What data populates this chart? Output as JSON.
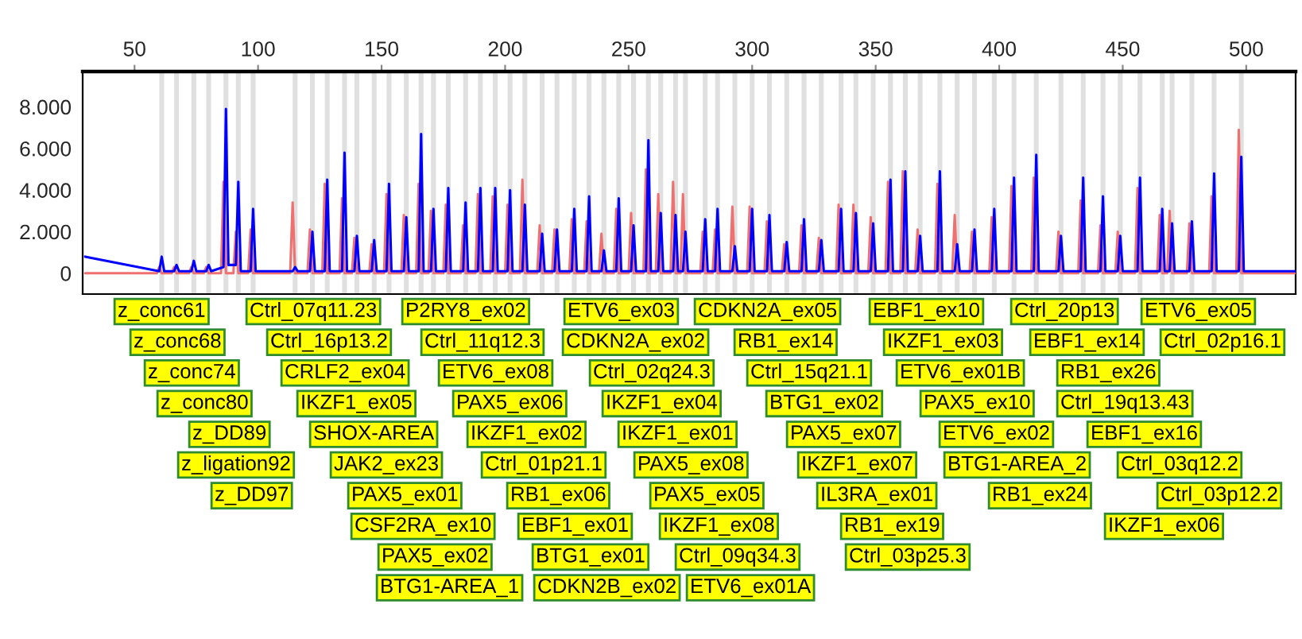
{
  "chart_data": {
    "type": "line",
    "xlim": [
      29,
      520
    ],
    "xticks": [
      50,
      100,
      150,
      200,
      250,
      300,
      350,
      400,
      450,
      500
    ],
    "ylim": [
      -1,
      9.7
    ],
    "yticks": [
      0,
      {
        "value": 2,
        "label": "2.000"
      },
      {
        "value": 4,
        "label": "4.000"
      },
      {
        "value": 6,
        "label": "6.000"
      },
      {
        "value": 8,
        "label": "8.000"
      }
    ],
    "grid": false,
    "legend": false,
    "series": [
      {
        "color": "#f07070",
        "x": [
          30,
          59,
          60,
          61,
          65,
          66,
          67,
          72,
          73,
          74,
          78,
          79,
          80,
          85,
          86,
          87,
          90,
          91,
          92,
          96,
          97,
          98,
          113,
          114,
          115,
          120,
          121,
          122,
          126,
          127,
          128,
          133,
          134,
          135,
          138,
          139,
          140,
          145,
          146,
          147,
          151,
          152,
          153,
          158,
          159,
          160,
          164,
          165,
          166,
          169,
          170,
          171,
          175,
          176,
          177,
          182,
          183,
          184,
          188,
          189,
          190,
          194,
          195,
          196,
          200,
          201,
          202,
          206,
          207,
          208,
          213,
          214,
          215,
          219,
          220,
          221,
          226,
          227,
          228,
          232,
          233,
          234,
          238,
          239,
          240,
          244,
          245,
          246,
          250,
          251,
          252,
          256,
          257,
          258,
          261,
          262,
          263,
          267,
          268,
          269,
          271,
          272,
          273,
          279,
          280,
          281,
          284,
          285,
          286,
          291,
          292,
          293,
          298,
          299,
          300,
          305,
          306,
          307,
          312,
          313,
          314,
          319,
          320,
          321,
          326,
          327,
          328,
          334,
          335,
          336,
          340,
          341,
          342,
          347,
          348,
          349,
          354,
          355,
          356,
          360,
          361,
          362,
          366,
          367,
          368,
          374,
          375,
          376,
          381,
          382,
          383,
          388,
          389,
          390,
          396,
          397,
          398,
          404,
          405,
          406,
          413,
          414,
          415,
          423,
          424,
          425,
          432,
          433,
          434,
          440,
          441,
          442,
          447,
          448,
          449,
          455,
          456,
          457,
          464,
          465,
          466,
          468,
          469,
          470,
          476,
          477,
          478,
          485,
          486,
          487,
          496,
          497,
          498,
          520
        ],
        "values": [
          0,
          0,
          0.3,
          0,
          0,
          0.3,
          0,
          0,
          0.3,
          0,
          0,
          0.3,
          0,
          0,
          4.4,
          0,
          0,
          2.0,
          0,
          0,
          2.1,
          0,
          0,
          3.4,
          0,
          0,
          2.1,
          0,
          0,
          4.3,
          0,
          0,
          3.6,
          0,
          0,
          1.7,
          0,
          0,
          1.4,
          0,
          0,
          3.8,
          0,
          0,
          2.8,
          0,
          0,
          4.3,
          0,
          0,
          3.0,
          0,
          0,
          3.3,
          0,
          0,
          2.3,
          0,
          0,
          3.8,
          0,
          0,
          3.7,
          0,
          0,
          3.3,
          0,
          0,
          4.5,
          0,
          0,
          2.3,
          0,
          0,
          2.1,
          0,
          0,
          2.6,
          0,
          0,
          2.5,
          0,
          0,
          1.9,
          0,
          0,
          3.1,
          0,
          0,
          2.9,
          0,
          0,
          5.0,
          0,
          0,
          3.8,
          0,
          0,
          4.4,
          0,
          0,
          3.8,
          0,
          0,
          2.0,
          0,
          0,
          2.1,
          0,
          0,
          3.2,
          0,
          0,
          3.2,
          0,
          0,
          2.5,
          0,
          0,
          1.4,
          0,
          0,
          2.3,
          0,
          0,
          1.7,
          0,
          0,
          3.3,
          0,
          0,
          3.3,
          0,
          0,
          2.7,
          0,
          0,
          4.4,
          0,
          0,
          4.9,
          0,
          0,
          2.1,
          0,
          0,
          4.3,
          0,
          0,
          2.8,
          0,
          0,
          2.0,
          0,
          0,
          2.7,
          0,
          0,
          4.2,
          0,
          0,
          4.6,
          0,
          0,
          2.0,
          0,
          0,
          3.5,
          0,
          0,
          2.3,
          0,
          0,
          2.0,
          0,
          0,
          4.1,
          0,
          0,
          2.8,
          0,
          0,
          3.0,
          0,
          0,
          2.4,
          0,
          0,
          3.7,
          0,
          0,
          6.9,
          0,
          0
        ]
      },
      {
        "color": "#0000ff",
        "x": [
          30,
          60,
          61,
          62,
          66,
          67,
          68,
          73,
          74,
          75,
          79,
          80,
          81,
          86,
          87,
          88,
          91,
          92,
          93,
          97,
          98,
          99,
          114,
          115,
          116,
          121,
          122,
          123,
          127,
          128,
          129,
          134,
          135,
          136,
          139,
          140,
          141,
          146,
          147,
          148,
          152,
          153,
          154,
          159,
          160,
          161,
          165,
          166,
          167,
          170,
          171,
          172,
          176,
          177,
          178,
          183,
          184,
          185,
          189,
          190,
          191,
          195,
          196,
          197,
          201,
          202,
          203,
          207,
          208,
          209,
          214,
          215,
          216,
          220,
          221,
          222,
          227,
          228,
          229,
          233,
          234,
          235,
          239,
          240,
          241,
          245,
          246,
          247,
          251,
          252,
          253,
          257,
          258,
          259,
          262,
          263,
          264,
          268,
          269,
          270,
          272,
          273,
          274,
          280,
          281,
          282,
          285,
          286,
          287,
          292,
          293,
          294,
          299,
          300,
          301,
          306,
          307,
          308,
          313,
          314,
          315,
          320,
          321,
          322,
          327,
          328,
          329,
          335,
          336,
          337,
          341,
          342,
          343,
          348,
          349,
          350,
          355,
          356,
          357,
          361,
          362,
          363,
          367,
          368,
          369,
          375,
          376,
          377,
          382,
          383,
          384,
          389,
          390,
          391,
          397,
          398,
          399,
          405,
          406,
          407,
          414,
          415,
          416,
          424,
          425,
          426,
          433,
          434,
          435,
          441,
          442,
          443,
          448,
          449,
          450,
          456,
          457,
          458,
          465,
          466,
          467,
          469,
          470,
          471,
          477,
          478,
          479,
          486,
          487,
          488,
          497,
          498,
          499,
          520
        ],
        "values": [
          0.8,
          0.1,
          0.8,
          0.1,
          0.1,
          0.4,
          0.1,
          0.1,
          0.6,
          0.1,
          0.1,
          0.4,
          0.1,
          0.3,
          7.9,
          0.4,
          0.4,
          4.4,
          0.1,
          0.1,
          3.1,
          0.1,
          0.1,
          0.3,
          0.1,
          0.1,
          2.0,
          0.1,
          0.1,
          4.5,
          0.1,
          0.1,
          5.8,
          0.1,
          0.1,
          1.8,
          0.1,
          0.1,
          1.6,
          0.1,
          0.1,
          4.3,
          0.1,
          0.1,
          2.7,
          0.1,
          0.1,
          6.7,
          0.1,
          0.1,
          3.1,
          0.1,
          0.1,
          4.1,
          0.1,
          0.1,
          3.4,
          0.1,
          0.1,
          4.1,
          0.1,
          0.1,
          4.1,
          0.1,
          0.1,
          4.0,
          0.1,
          0.1,
          3.3,
          0.1,
          0.1,
          1.9,
          0.1,
          0.1,
          2.1,
          0.1,
          0.1,
          3.1,
          0.1,
          0.1,
          3.7,
          0.1,
          0.1,
          1.1,
          0.1,
          0.1,
          3.6,
          0.1,
          0.1,
          2.3,
          0.1,
          0.1,
          6.4,
          0.1,
          0.1,
          2.9,
          0.1,
          0.1,
          2.8,
          0.1,
          0.1,
          2.0,
          0.1,
          0.1,
          2.6,
          0.1,
          0.1,
          3.1,
          0.1,
          0.1,
          1.3,
          0.1,
          0.1,
          3.1,
          0.1,
          0.1,
          2.8,
          0.1,
          0.1,
          1.5,
          0.1,
          0.1,
          2.6,
          0.1,
          0.1,
          1.6,
          0.1,
          0.1,
          3.1,
          0.1,
          0.1,
          2.9,
          0.1,
          0.1,
          2.4,
          0.1,
          0.1,
          4.5,
          0.1,
          0.1,
          4.9,
          0.1,
          0.1,
          1.8,
          0.1,
          0.1,
          4.9,
          0.1,
          0.1,
          1.4,
          0.1,
          0.1,
          2.1,
          0.1,
          0.1,
          3.1,
          0.1,
          0.1,
          4.6,
          0.1,
          0.1,
          5.7,
          0.1,
          0.1,
          1.8,
          0.1,
          0.1,
          4.6,
          0.1,
          0.1,
          3.7,
          0.1,
          0.1,
          1.8,
          0.1,
          0.1,
          4.6,
          0.1,
          0.1,
          3.1,
          0.1,
          0.1,
          2.4,
          0.1,
          0.1,
          2.5,
          0.1,
          0.1,
          4.8,
          0.1,
          0.1,
          5.6,
          0.1,
          0.1
        ]
      }
    ],
    "ref_lines": [
      {
        "axis": "x",
        "value": 61,
        "color": "#e0e0e0"
      },
      {
        "axis": "x",
        "value": 67,
        "color": "#e0e0e0"
      },
      {
        "axis": "x",
        "value": 74,
        "color": "#e0e0e0"
      },
      {
        "axis": "x",
        "value": 80,
        "color": "#e0e0e0"
      },
      {
        "axis": "x",
        "value": 87,
        "color": "#e0e0e0"
      },
      {
        "axis": "x",
        "value": 92,
        "color": "#e0e0e0"
      },
      {
        "axis": "x",
        "value": 98,
        "color": "#e0e0e0"
      },
      {
        "axis": "x",
        "value": 115,
        "color": "#e0e0e0"
      },
      {
        "axis": "x",
        "value": 122,
        "color": "#e0e0e0"
      },
      {
        "axis": "x",
        "value": 128,
        "color": "#e0e0e0"
      },
      {
        "axis": "x",
        "value": 135,
        "color": "#e0e0e0"
      },
      {
        "axis": "x",
        "value": 140,
        "color": "#e0e0e0"
      },
      {
        "axis": "x",
        "value": 147,
        "color": "#e0e0e0"
      },
      {
        "axis": "x",
        "value": 153,
        "color": "#e0e0e0"
      },
      {
        "axis": "x",
        "value": 160,
        "color": "#e0e0e0"
      },
      {
        "axis": "x",
        "value": 166,
        "color": "#e0e0e0"
      },
      {
        "axis": "x",
        "value": 171,
        "color": "#e0e0e0"
      },
      {
        "axis": "x",
        "value": 177,
        "color": "#e0e0e0"
      },
      {
        "axis": "x",
        "value": 184,
        "color": "#e0e0e0"
      },
      {
        "axis": "x",
        "value": 190,
        "color": "#e0e0e0"
      },
      {
        "axis": "x",
        "value": 196,
        "color": "#e0e0e0"
      },
      {
        "axis": "x",
        "value": 202,
        "color": "#e0e0e0"
      },
      {
        "axis": "x",
        "value": 208,
        "color": "#e0e0e0"
      },
      {
        "axis": "x",
        "value": 215,
        "color": "#e0e0e0"
      },
      {
        "axis": "x",
        "value": 221,
        "color": "#e0e0e0"
      },
      {
        "axis": "x",
        "value": 228,
        "color": "#e0e0e0"
      },
      {
        "axis": "x",
        "value": 234,
        "color": "#e0e0e0"
      },
      {
        "axis": "x",
        "value": 240,
        "color": "#e0e0e0"
      },
      {
        "axis": "x",
        "value": 246,
        "color": "#e0e0e0"
      },
      {
        "axis": "x",
        "value": 252,
        "color": "#e0e0e0"
      },
      {
        "axis": "x",
        "value": 258,
        "color": "#e0e0e0"
      },
      {
        "axis": "x",
        "value": 263,
        "color": "#e0e0e0"
      },
      {
        "axis": "x",
        "value": 269,
        "color": "#e0e0e0"
      },
      {
        "axis": "x",
        "value": 273,
        "color": "#e0e0e0"
      },
      {
        "axis": "x",
        "value": 281,
        "color": "#e0e0e0"
      },
      {
        "axis": "x",
        "value": 286,
        "color": "#e0e0e0"
      },
      {
        "axis": "x",
        "value": 293,
        "color": "#e0e0e0"
      },
      {
        "axis": "x",
        "value": 300,
        "color": "#e0e0e0"
      },
      {
        "axis": "x",
        "value": 307,
        "color": "#e0e0e0"
      },
      {
        "axis": "x",
        "value": 314,
        "color": "#e0e0e0"
      },
      {
        "axis": "x",
        "value": 321,
        "color": "#e0e0e0"
      },
      {
        "axis": "x",
        "value": 328,
        "color": "#e0e0e0"
      },
      {
        "axis": "x",
        "value": 336,
        "color": "#e0e0e0"
      },
      {
        "axis": "x",
        "value": 342,
        "color": "#e0e0e0"
      },
      {
        "axis": "x",
        "value": 349,
        "color": "#e0e0e0"
      },
      {
        "axis": "x",
        "value": 356,
        "color": "#e0e0e0"
      },
      {
        "axis": "x",
        "value": 362,
        "color": "#e0e0e0"
      },
      {
        "axis": "x",
        "value": 368,
        "color": "#e0e0e0"
      },
      {
        "axis": "x",
        "value": 376,
        "color": "#e0e0e0"
      },
      {
        "axis": "x",
        "value": 383,
        "color": "#e0e0e0"
      },
      {
        "axis": "x",
        "value": 390,
        "color": "#e0e0e0"
      },
      {
        "axis": "x",
        "value": 398,
        "color": "#e0e0e0"
      },
      {
        "axis": "x",
        "value": 406,
        "color": "#e0e0e0"
      },
      {
        "axis": "x",
        "value": 415,
        "color": "#e0e0e0"
      },
      {
        "axis": "x",
        "value": 425,
        "color": "#e0e0e0"
      },
      {
        "axis": "x",
        "value": 434,
        "color": "#e0e0e0"
      },
      {
        "axis": "x",
        "value": 442,
        "color": "#e0e0e0"
      },
      {
        "axis": "x",
        "value": 449,
        "color": "#e0e0e0"
      },
      {
        "axis": "x",
        "value": 457,
        "color": "#e0e0e0"
      },
      {
        "axis": "x",
        "value": 466,
        "color": "#e0e0e0"
      },
      {
        "axis": "x",
        "value": 470,
        "color": "#e0e0e0"
      },
      {
        "axis": "x",
        "value": 478,
        "color": "#e0e0e0"
      },
      {
        "axis": "x",
        "value": 487,
        "color": "#e0e0e0"
      },
      {
        "axis": "x",
        "value": 498,
        "color": "#e0e0e0"
      }
    ],
    "annotations": [
      "z_conc61",
      "z_conc68",
      "z_conc74",
      "z_conc80",
      "z_DD89",
      "z_ligation92",
      "z_DD97",
      "Ctrl_07q11.23",
      "Ctrl_16p13.2",
      "CRLF2_ex04",
      "IKZF1_ex05",
      "SHOX-AREA",
      "JAK2_ex23",
      "PAX5_ex01",
      "CSF2RA_ex10",
      "PAX5_ex02",
      "BTG1-AREA_1",
      "P2RY8_ex02",
      "Ctrl_11q12.3",
      "ETV6_ex08",
      "PAX5_ex06",
      "IKZF1_ex02",
      "Ctrl_01p21.1",
      "RB1_ex06",
      "EBF1_ex01",
      "BTG1_ex01",
      "CDKN2B_ex02",
      "ETV6_ex03",
      "CDKN2A_ex02",
      "Ctrl_02q24.3",
      "IKZF1_ex04",
      "IKZF1_ex01",
      "PAX5_ex08",
      "PAX5_ex05",
      "IKZF1_ex08",
      "Ctrl_09q34.3",
      "ETV6_ex01A",
      "CDKN2A_ex05",
      "RB1_ex14",
      "Ctrl_15q21.1",
      "BTG1_ex02",
      "PAX5_ex07",
      "IKZF1_ex07",
      "IL3RA_ex01",
      "RB1_ex19",
      "Ctrl_03p25.3",
      "EBF1_ex10",
      "IKZF1_ex03",
      "ETV6_ex01B",
      "PAX5_ex10",
      "ETV6_ex02",
      "BTG1-AREA_2",
      "RB1_ex24",
      "Ctrl_20p13",
      "EBF1_ex14",
      "RB1_ex26",
      "Ctrl_19q13.43",
      "EBF1_ex16",
      "Ctrl_03q12.2",
      "IKZF1_ex06",
      "ETV6_ex05",
      "Ctrl_02p16.1",
      "Ctrl_03p12.2"
    ]
  }
}
